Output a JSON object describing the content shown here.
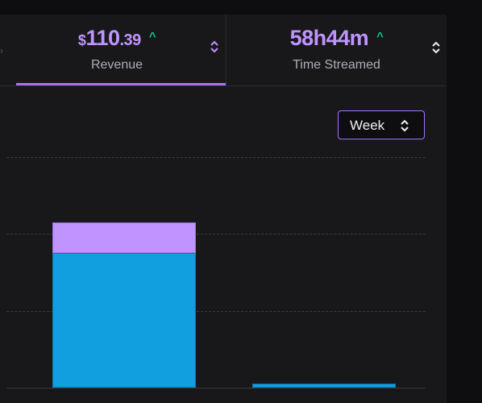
{
  "stats": {
    "revenue": {
      "currency": "$",
      "whole": "110",
      "cents": ".39",
      "label": "Revenue",
      "trend": "^"
    },
    "time": {
      "value": "58h44m",
      "label": "Time Streamed",
      "trend": "^"
    }
  },
  "period_select": {
    "value": "Week"
  },
  "colors": {
    "accent": "#a970ff",
    "value": "#bf94ff",
    "trend_up": "#00c896",
    "bar_primary": "#119fdf",
    "bar_secondary": "#bf94ff"
  },
  "chart_data": {
    "type": "bar",
    "stacked": true,
    "categories": [
      "",
      ""
    ],
    "series": [
      {
        "values": [
          175,
          5
        ]
      },
      {
        "values": [
          40,
          0
        ]
      }
    ],
    "ylim": [
      0,
      300
    ],
    "grid": true
  }
}
